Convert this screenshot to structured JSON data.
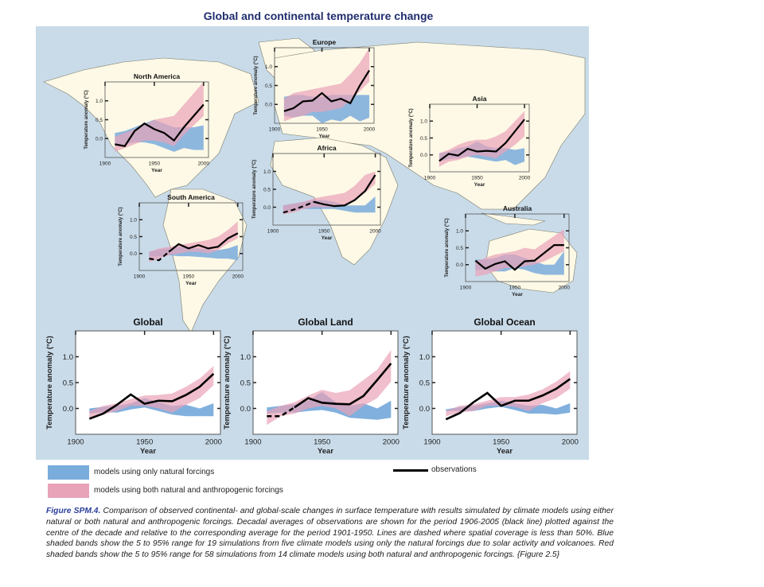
{
  "figure": {
    "title": "Global and continental temperature change",
    "caption_label": "Figure SPM.4.",
    "caption_text": " Comparison of observed continental- and global-scale changes in surface temperature with results simulated by climate models using either natural or both natural and anthropogenic forcings. Decadal averages of observations are shown for the period 1906-2005 (black line) plotted against the centre of the decade and relative to the corresponding average for the period 1901-1950. Lines are dashed where spatial coverage is less than 50%. Blue shaded bands show the 5 to 95% range for 19 simulations from five climate models using only the natural forcings due to solar activity and volcanoes. Red shaded bands show the 5 to 95% range for 58 simulations from 14 climate models using both natural and anthropogenic forcings. {Figure 2.5}"
  },
  "legend": {
    "natural_label": "models using only natural forcings",
    "anthro_label": "models using both natural and anthropogenic forcings",
    "obs_label": "observations"
  },
  "colors": {
    "natural": "#7aacdc",
    "anthro": "#e9a3b8",
    "overlap": "#a98bb5",
    "obs": "#000000",
    "ocean": "#c9dbe9",
    "land": "#fdf9e6",
    "title": "#1f2d6e",
    "caption_label": "#2a3e9a"
  },
  "chart_data": [
    {
      "type": "area",
      "title": "North America",
      "xlabel": "Year",
      "ylabel": "Temperature anomaly (°C)",
      "xlim": [
        1900,
        2005
      ],
      "ylim": [
        -0.5,
        1.5
      ],
      "xticks": [
        "1900",
        "1950",
        "2000"
      ],
      "yticks": [
        "0.0",
        "0.5",
        "1.0"
      ],
      "x": [
        1910,
        1920,
        1930,
        1940,
        1950,
        1960,
        1970,
        1980,
        1990,
        2000
      ],
      "observations": [
        -0.15,
        -0.2,
        0.2,
        0.4,
        0.25,
        0.15,
        -0.05,
        0.3,
        0.6,
        0.9
      ],
      "dashed_until": null,
      "natural": {
        "low": [
          -0.2,
          -0.15,
          -0.1,
          -0.1,
          -0.15,
          -0.25,
          -0.35,
          -0.25,
          -0.3,
          -0.3
        ],
        "high": [
          0.15,
          0.2,
          0.3,
          0.4,
          0.5,
          0.4,
          0.3,
          0.3,
          0.3,
          0.35
        ]
      },
      "anthro": {
        "low": [
          -0.35,
          -0.25,
          -0.15,
          -0.05,
          -0.05,
          -0.1,
          -0.2,
          0.1,
          0.35,
          0.6
        ],
        "high": [
          0.05,
          0.15,
          0.25,
          0.35,
          0.5,
          0.55,
          0.6,
          0.9,
          1.2,
          1.5
        ]
      }
    },
    {
      "type": "area",
      "title": "Europe",
      "xlabel": "Year",
      "ylabel": "Temperature anomaly (°C)",
      "xlim": [
        1900,
        2005
      ],
      "ylim": [
        -0.5,
        1.5
      ],
      "xticks": [
        "1900",
        "1950",
        "2000"
      ],
      "yticks": [
        "0.0",
        "0.5",
        "1.0"
      ],
      "x": [
        1910,
        1920,
        1930,
        1940,
        1950,
        1960,
        1970,
        1980,
        1990,
        2000
      ],
      "observations": [
        -0.18,
        -0.1,
        0.08,
        0.1,
        0.3,
        0.08,
        0.15,
        0.03,
        0.5,
        0.9
      ],
      "dashed_until": null,
      "natural": {
        "low": [
          -0.3,
          -0.35,
          -0.3,
          -0.3,
          -0.5,
          -0.4,
          -0.45,
          -0.3,
          -0.45,
          -0.35
        ],
        "high": [
          0.2,
          0.25,
          0.25,
          0.2,
          0.2,
          0.25,
          0.25,
          0.25,
          0.25,
          0.25
        ]
      },
      "anthro": {
        "low": [
          -0.45,
          -0.35,
          -0.3,
          -0.2,
          -0.2,
          -0.15,
          -0.1,
          0.1,
          0.35,
          0.6
        ],
        "high": [
          0.15,
          0.3,
          0.35,
          0.4,
          0.45,
          0.5,
          0.55,
          0.8,
          1.1,
          1.5
        ]
      }
    },
    {
      "type": "area",
      "title": "Asia",
      "xlabel": "Year",
      "ylabel": "Temperature anomaly (°C)",
      "xlim": [
        1900,
        2005
      ],
      "ylim": [
        -0.5,
        1.5
      ],
      "xticks": [
        "1900",
        "1950",
        "2000"
      ],
      "yticks": [
        "0.0",
        "0.5",
        "1.0"
      ],
      "x": [
        1910,
        1920,
        1930,
        1940,
        1950,
        1960,
        1970,
        1980,
        1990,
        2000
      ],
      "observations": [
        -0.18,
        0.03,
        -0.02,
        0.18,
        0.1,
        0.12,
        0.1,
        0.35,
        0.7,
        1.05
      ],
      "dashed_until": null,
      "natural": {
        "low": [
          -0.2,
          -0.12,
          -0.1,
          -0.05,
          -0.1,
          -0.15,
          -0.2,
          -0.15,
          -0.3,
          -0.2
        ],
        "high": [
          0.05,
          0.1,
          0.2,
          0.25,
          0.4,
          0.25,
          0.2,
          0.2,
          0.15,
          0.2
        ]
      },
      "anthro": {
        "low": [
          -0.35,
          -0.2,
          -0.15,
          -0.05,
          0.0,
          -0.05,
          -0.1,
          0.1,
          0.3,
          0.55
        ],
        "high": [
          0.05,
          0.15,
          0.3,
          0.4,
          0.45,
          0.45,
          0.55,
          0.7,
          1.0,
          1.3
        ]
      }
    },
    {
      "type": "area",
      "title": "Africa",
      "xlabel": "Year",
      "ylabel": "Temperature anomaly (°C)",
      "xlim": [
        1900,
        2005
      ],
      "ylim": [
        -0.5,
        1.5
      ],
      "xticks": [
        "1900",
        "1950",
        "2000"
      ],
      "yticks": [
        "0.0",
        "0.5",
        "1.0"
      ],
      "x": [
        1910,
        1920,
        1930,
        1940,
        1950,
        1960,
        1970,
        1980,
        1990,
        2000
      ],
      "observations": [
        -0.15,
        -0.07,
        0.03,
        0.15,
        0.08,
        0.03,
        0.05,
        0.2,
        0.45,
        0.9
      ],
      "dashed_until": 1940,
      "natural": {
        "low": [
          -0.15,
          -0.1,
          -0.05,
          -0.05,
          -0.05,
          -0.05,
          -0.1,
          -0.15,
          -0.15,
          -0.15
        ],
        "high": [
          0.05,
          0.1,
          0.15,
          0.2,
          0.2,
          0.15,
          0.05,
          0.05,
          0.05,
          0.3
        ]
      },
      "anthro": {
        "low": [
          -0.2,
          -0.15,
          -0.05,
          0.0,
          0.0,
          0.0,
          0.05,
          0.2,
          0.4,
          0.65
        ],
        "high": [
          0.05,
          0.1,
          0.15,
          0.25,
          0.3,
          0.35,
          0.4,
          0.6,
          0.9,
          1.0
        ]
      }
    },
    {
      "type": "area",
      "title": "South America",
      "xlabel": "Year",
      "ylabel": "Temperature anomaly (°C)",
      "xlim": [
        1900,
        2005
      ],
      "ylim": [
        -0.5,
        1.5
      ],
      "xticks": [
        "1900",
        "1950",
        "2000"
      ],
      "yticks": [
        "0.0",
        "0.5",
        "1.0"
      ],
      "x": [
        1910,
        1920,
        1930,
        1940,
        1950,
        1960,
        1970,
        1980,
        1990,
        2000
      ],
      "observations": [
        -0.15,
        -0.2,
        0.05,
        0.28,
        0.15,
        0.25,
        0.15,
        0.2,
        0.45,
        0.6
      ],
      "dashed_until": 1930,
      "natural": {
        "low": [
          -0.1,
          -0.08,
          -0.05,
          -0.08,
          -0.08,
          -0.1,
          -0.12,
          -0.15,
          -0.15,
          -0.2
        ],
        "high": [
          0.05,
          0.12,
          0.15,
          0.2,
          0.2,
          0.15,
          0.12,
          0.1,
          0.15,
          0.25
        ]
      },
      "anthro": {
        "low": [
          -0.25,
          -0.15,
          -0.05,
          0.0,
          0.05,
          0.05,
          0.0,
          0.1,
          0.3,
          0.45
        ],
        "high": [
          0.05,
          0.15,
          0.2,
          0.25,
          0.3,
          0.35,
          0.4,
          0.5,
          0.7,
          0.95
        ]
      }
    },
    {
      "type": "area",
      "title": "Australia",
      "xlabel": "Year",
      "ylabel": "Temperature anomaly (°C)",
      "xlim": [
        1900,
        2005
      ],
      "ylim": [
        -0.5,
        1.5
      ],
      "xticks": [
        "1900",
        "1950",
        "2000"
      ],
      "yticks": [
        "0.0",
        "0.5",
        "1.0"
      ],
      "x": [
        1910,
        1920,
        1930,
        1940,
        1950,
        1960,
        1970,
        1980,
        1990,
        2000
      ],
      "observations": [
        0.12,
        -0.12,
        0.02,
        0.1,
        -0.15,
        0.1,
        0.12,
        0.35,
        0.58,
        0.58
      ],
      "dashed_until": null,
      "natural": {
        "low": [
          -0.15,
          -0.15,
          -0.2,
          -0.2,
          -0.1,
          -0.15,
          -0.25,
          -0.3,
          -0.3,
          -0.3
        ],
        "high": [
          0.15,
          0.15,
          0.2,
          0.3,
          0.3,
          0.2,
          0.1,
          0.0,
          0.0,
          0.4
        ]
      },
      "anthro": {
        "low": [
          -0.35,
          -0.3,
          -0.2,
          -0.1,
          -0.1,
          -0.05,
          0.0,
          0.1,
          0.25,
          0.4
        ],
        "high": [
          0.1,
          0.2,
          0.3,
          0.35,
          0.4,
          0.5,
          0.45,
          0.65,
          0.85,
          1.05
        ]
      }
    },
    {
      "type": "area",
      "title": "Global",
      "xlabel": "Year",
      "ylabel": "Temperature anomaly (°C)",
      "xlim": [
        1900,
        2005
      ],
      "ylim": [
        -0.5,
        1.5
      ],
      "xticks": [
        "1900",
        "1950",
        "2000"
      ],
      "yticks": [
        "0.0",
        "0.5",
        "1.0"
      ],
      "x": [
        1910,
        1920,
        1930,
        1940,
        1950,
        1960,
        1970,
        1980,
        1990,
        2000
      ],
      "observations": [
        -0.2,
        -0.1,
        0.07,
        0.27,
        0.09,
        0.15,
        0.14,
        0.26,
        0.42,
        0.67
      ],
      "dashed_until": null,
      "natural": {
        "low": [
          -0.1,
          -0.07,
          -0.08,
          -0.02,
          0.02,
          -0.05,
          -0.12,
          -0.15,
          -0.15,
          -0.15
        ],
        "high": [
          0.0,
          0.03,
          0.05,
          0.1,
          0.2,
          0.12,
          0.05,
          0.07,
          0.0,
          0.1
        ]
      },
      "anthro": {
        "low": [
          -0.2,
          -0.12,
          -0.05,
          0.05,
          0.05,
          0.0,
          -0.08,
          0.07,
          0.2,
          0.45
        ],
        "high": [
          -0.05,
          0.05,
          0.1,
          0.18,
          0.25,
          0.26,
          0.29,
          0.42,
          0.58,
          0.82
        ]
      }
    },
    {
      "type": "area",
      "title": "Global Land",
      "xlabel": "Year",
      "ylabel": "Temperature anomaly (°C)",
      "xlim": [
        1900,
        2005
      ],
      "ylim": [
        -0.5,
        1.5
      ],
      "xticks": [
        "1900",
        "1950",
        "2000"
      ],
      "yticks": [
        "0.0",
        "0.5",
        "1.0"
      ],
      "x": [
        1910,
        1920,
        1930,
        1940,
        1950,
        1960,
        1970,
        1980,
        1990,
        2000
      ],
      "observations": [
        -0.15,
        -0.15,
        0.02,
        0.2,
        0.11,
        0.09,
        0.08,
        0.24,
        0.55,
        0.87
      ],
      "dashed_until": 1930,
      "natural": {
        "low": [
          -0.1,
          -0.08,
          -0.08,
          -0.05,
          -0.03,
          -0.08,
          -0.18,
          -0.2,
          -0.22,
          -0.18
        ],
        "high": [
          0.02,
          0.05,
          0.08,
          0.15,
          0.32,
          0.12,
          0.05,
          0.1,
          0.0,
          0.15
        ]
      },
      "anthro": {
        "low": [
          -0.32,
          -0.15,
          -0.1,
          0.0,
          0.05,
          0.0,
          -0.15,
          0.05,
          0.2,
          0.52
        ],
        "high": [
          -0.05,
          0.05,
          0.12,
          0.25,
          0.36,
          0.3,
          0.35,
          0.55,
          0.75,
          1.13
        ]
      }
    },
    {
      "type": "area",
      "title": "Global Ocean",
      "xlabel": "Year",
      "ylabel": "Temperature anomaly (°C)",
      "xlim": [
        1900,
        2005
      ],
      "ylim": [
        -0.5,
        1.5
      ],
      "xticks": [
        "1900",
        "1950",
        "2000"
      ],
      "yticks": [
        "0.0",
        "0.5",
        "1.0"
      ],
      "x": [
        1910,
        1920,
        1930,
        1940,
        1950,
        1960,
        1970,
        1980,
        1990,
        2000
      ],
      "observations": [
        -0.21,
        -0.09,
        0.12,
        0.3,
        0.05,
        0.15,
        0.15,
        0.25,
        0.38,
        0.57
      ],
      "dashed_until": null,
      "natural": {
        "low": [
          -0.05,
          -0.05,
          -0.05,
          0.0,
          0.03,
          -0.03,
          -0.1,
          -0.1,
          -0.12,
          -0.08
        ],
        "high": [
          -0.02,
          0.03,
          0.05,
          0.1,
          0.15,
          0.1,
          0.05,
          0.07,
          0.0,
          0.1
        ]
      },
      "anthro": {
        "low": [
          -0.15,
          -0.08,
          -0.05,
          0.05,
          0.05,
          0.03,
          -0.05,
          0.1,
          0.2,
          0.38
        ],
        "high": [
          -0.05,
          0.05,
          0.08,
          0.15,
          0.22,
          0.22,
          0.27,
          0.37,
          0.52,
          0.72
        ]
      }
    }
  ]
}
